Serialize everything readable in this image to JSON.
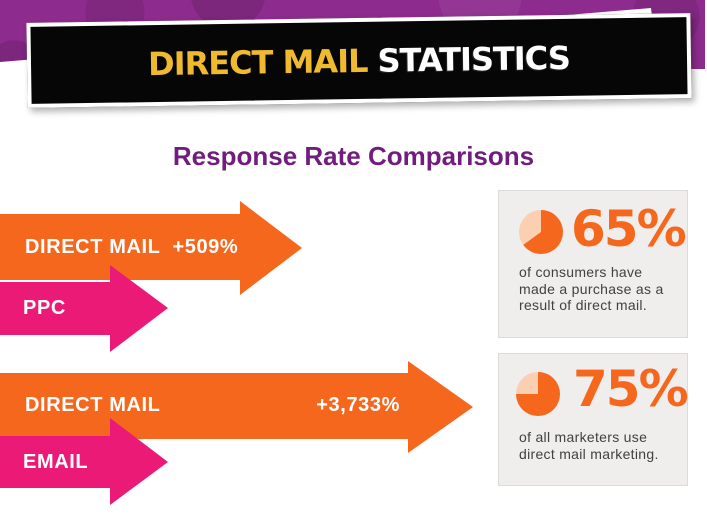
{
  "banner": {
    "highlight": "DIRECT MAIL",
    "rest": " STATISTICS",
    "highlight_color": "#EFBA2F",
    "background": "#060606"
  },
  "heading": "Response Rate Comparisons",
  "comparisons": [
    {
      "winner": {
        "label": "DIRECT MAIL",
        "gap": "  ",
        "value": "+509%"
      },
      "loser": {
        "label": "PPC"
      }
    },
    {
      "winner": {
        "label": "DIRECT MAIL",
        "value": "+3,733%"
      },
      "loser": {
        "label": "EMAIL"
      }
    }
  ],
  "stats": [
    {
      "percent": "65%",
      "pie_degrees": 234,
      "description": "of consumers have\nmade a purchase as a\nresult of direct mail."
    },
    {
      "percent": "75%",
      "pie_degrees": 270,
      "description": "of all marketers use\ndirect mail marketing."
    }
  ],
  "colors": {
    "orange": "#F4671D",
    "pink": "#EB1A77",
    "pie_light": "#FBCFB2",
    "band_purple": "#8E2B8E",
    "heading_purple": "#701D7E",
    "card_bg": "#EFEEEC",
    "card_text": "#414042"
  },
  "chart_data": {
    "type": "bar",
    "title": "Response Rate Comparisons",
    "groups": [
      {
        "bars": [
          {
            "label": "DIRECT MAIL",
            "value_label": "+509%",
            "color": "#F4671D"
          },
          {
            "label": "PPC",
            "value_label": "",
            "color": "#EB1A77"
          }
        ]
      },
      {
        "bars": [
          {
            "label": "DIRECT MAIL",
            "value_label": "+3,733%",
            "color": "#F4671D"
          },
          {
            "label": "EMAIL",
            "value_label": "",
            "color": "#EB1A77"
          }
        ]
      }
    ],
    "stats": [
      {
        "value": 65,
        "unit": "%",
        "text": "of consumers have made a purchase as a result of direct mail."
      },
      {
        "value": 75,
        "unit": "%",
        "text": "of all marketers use direct mail marketing."
      }
    ]
  }
}
